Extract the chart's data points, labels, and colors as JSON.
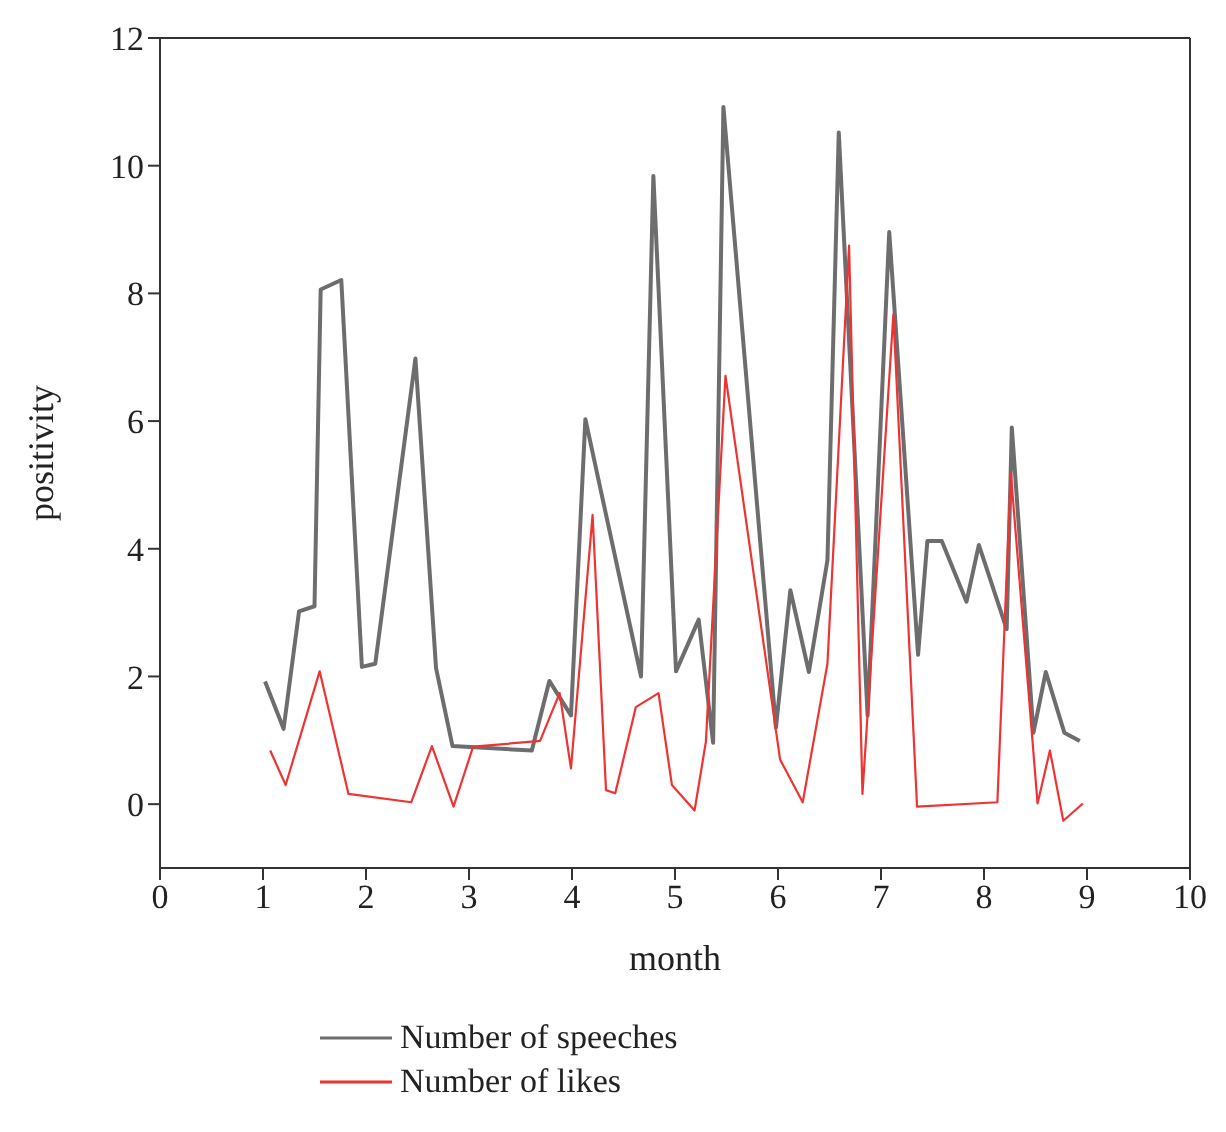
{
  "chart_data": {
    "type": "line",
    "xlabel": "month",
    "ylabel": "positivity",
    "xlim": [
      0,
      10
    ],
    "xticks": [
      0,
      1,
      2,
      3,
      4,
      5,
      6,
      7,
      8,
      9,
      10
    ],
    "ylim": [
      -1,
      12
    ],
    "yticks": [
      0,
      2,
      4,
      6,
      8,
      10,
      12
    ],
    "grid": false,
    "legend": "bottom",
    "marker": "none",
    "line_style": "solid",
    "series": [
      {
        "name": "Number of speeches",
        "color": "#6d6d6d",
        "x": [
          1.02,
          1.2,
          1.35,
          1.5,
          1.56,
          1.76,
          1.96,
          2.09,
          2.48,
          2.68,
          2.84,
          3.61,
          3.78,
          3.99,
          4.13,
          4.67,
          4.79,
          5.01,
          5.23,
          5.37,
          5.47,
          5.98,
          6.12,
          6.3,
          6.48,
          6.59,
          6.87,
          7.08,
          7.36,
          7.45,
          7.59,
          7.83,
          7.95,
          8.22,
          8.27,
          8.48,
          8.6,
          8.78,
          8.93
        ],
        "values": [
          1.92,
          1.18,
          3.02,
          3.1,
          8.06,
          8.21,
          2.15,
          2.2,
          6.98,
          2.13,
          0.91,
          0.84,
          1.93,
          1.39,
          6.03,
          2.0,
          9.84,
          2.08,
          2.89,
          0.96,
          10.92,
          1.2,
          3.35,
          2.07,
          3.82,
          10.52,
          1.39,
          8.96,
          2.34,
          4.12,
          4.12,
          3.17,
          4.06,
          2.74,
          5.9,
          1.12,
          2.07,
          1.12,
          0.99
        ]
      },
      {
        "name": "Number of likes",
        "color": "#ee3333",
        "x": [
          1.07,
          1.22,
          1.55,
          1.83,
          2.44,
          2.64,
          2.85,
          3.04,
          3.69,
          3.88,
          3.99,
          4.2,
          4.33,
          4.42,
          4.62,
          4.84,
          4.97,
          5.19,
          5.3,
          5.49,
          6.02,
          6.24,
          6.48,
          6.69,
          6.82,
          7.12,
          7.35,
          8.13,
          8.26,
          8.52,
          8.64,
          8.77,
          8.96
        ],
        "values": [
          0.84,
          0.3,
          2.08,
          0.16,
          0.03,
          0.91,
          -0.04,
          0.9,
          0.99,
          1.74,
          0.56,
          4.53,
          0.22,
          0.17,
          1.52,
          1.74,
          0.3,
          -0.1,
          0.98,
          6.71,
          0.7,
          0.03,
          2.2,
          8.75,
          0.16,
          7.67,
          -0.04,
          0.03,
          5.2,
          0.01,
          0.84,
          -0.26,
          0.01
        ]
      }
    ]
  }
}
